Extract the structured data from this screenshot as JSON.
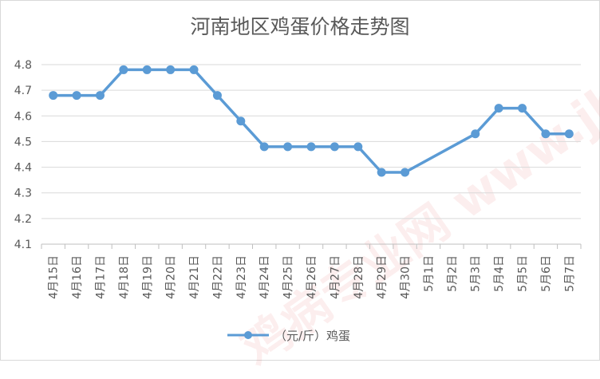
{
  "chart_data": {
    "type": "line",
    "title": "河南地区鸡蛋价格走势图",
    "categories": [
      "4月15日",
      "4月16日",
      "4月17日",
      "4月18日",
      "4月19日",
      "4月20日",
      "4月21日",
      "4月22日",
      "4月23日",
      "4月24日",
      "4月25日",
      "4月26日",
      "4月27日",
      "4月28日",
      "4月29日",
      "4月30日",
      "5月1日",
      "5月2日",
      "5月3日",
      "5月4日",
      "5月5日",
      "5月6日",
      "5月7日"
    ],
    "series": [
      {
        "name": "（元/斤）鸡蛋",
        "values": [
          4.68,
          4.68,
          4.68,
          4.78,
          4.78,
          4.78,
          4.78,
          4.68,
          4.58,
          4.48,
          4.48,
          4.48,
          4.48,
          4.48,
          4.38,
          4.38,
          null,
          null,
          4.53,
          4.63,
          4.63,
          4.53,
          4.53
        ]
      }
    ],
    "yticks": [
      "4.1",
      "4.2",
      "4.3",
      "4.4",
      "4.5",
      "4.6",
      "4.7",
      "4.8"
    ],
    "ylim": [
      4.1,
      4.8
    ],
    "grid": true,
    "legend_position": "bottom",
    "line_color": "#5B9BD5",
    "watermark": "鸡病专业网 www.jbzyw.com"
  }
}
